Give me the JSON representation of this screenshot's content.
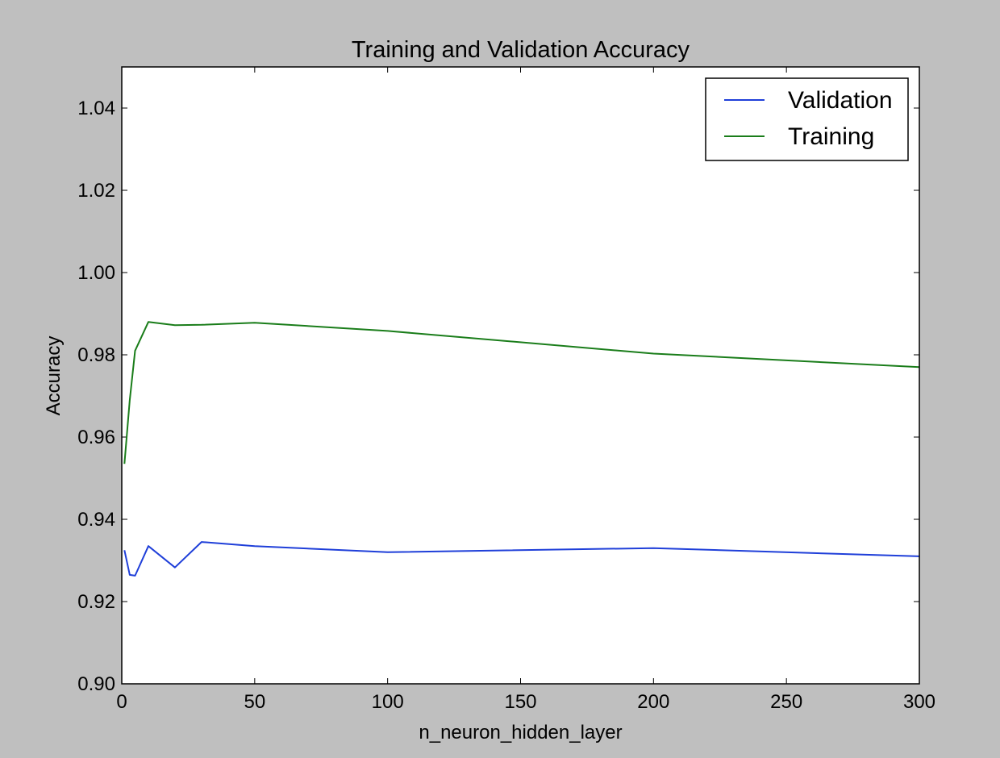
{
  "chart_data": {
    "type": "line",
    "title": "Training and Validation Accuracy",
    "xlabel": "n_neuron_hidden_layer",
    "ylabel": "Accuracy",
    "xlim": [
      0,
      300
    ],
    "ylim": [
      0.9,
      1.05
    ],
    "x_ticks": [
      0,
      50,
      100,
      150,
      200,
      250,
      300
    ],
    "x_tick_labels": [
      "0",
      "50",
      "100",
      "150",
      "200",
      "250",
      "300"
    ],
    "y_ticks": [
      0.9,
      0.92,
      0.94,
      0.96,
      0.98,
      1.0,
      1.02,
      1.04
    ],
    "y_tick_labels": [
      "0.90",
      "0.92",
      "0.94",
      "0.96",
      "0.98",
      "1.00",
      "1.02",
      "1.04"
    ],
    "grid": false,
    "legend_position": "top-right",
    "series": [
      {
        "name": "Validation",
        "color": "#1f3fd9",
        "x": [
          1,
          3,
          5,
          10,
          20,
          30,
          50,
          100,
          200,
          300
        ],
        "y": [
          0.9325,
          0.9265,
          0.9263,
          0.9335,
          0.9283,
          0.9345,
          0.9335,
          0.932,
          0.933,
          0.931
        ]
      },
      {
        "name": "Training",
        "color": "#1a7d1a",
        "x": [
          1,
          3,
          5,
          10,
          20,
          30,
          50,
          100,
          200,
          300
        ],
        "y": [
          0.9535,
          0.969,
          0.981,
          0.988,
          0.9872,
          0.9873,
          0.9878,
          0.9858,
          0.9803,
          0.977
        ]
      }
    ]
  }
}
